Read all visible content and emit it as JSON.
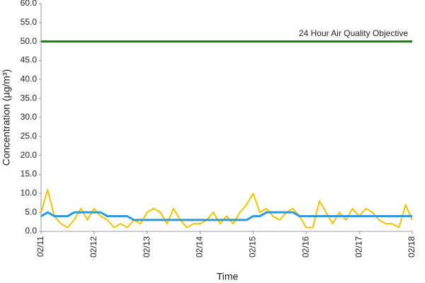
{
  "chart_data": {
    "type": "line",
    "x_label": "Time",
    "y_label": "Concentration (µg/m³)",
    "x": [
      0,
      3,
      6,
      9,
      12,
      15,
      18,
      21,
      24,
      27,
      30,
      33,
      36,
      39,
      42,
      45,
      48,
      51,
      54,
      57,
      60,
      63,
      66,
      69,
      72,
      75,
      78,
      81,
      84,
      87,
      90,
      93,
      96,
      99,
      102,
      105,
      108,
      111,
      114,
      117,
      120,
      123,
      126,
      129,
      132,
      135,
      138,
      141,
      144,
      147,
      150,
      153,
      156,
      159,
      162,
      165,
      168
    ],
    "series": [
      {
        "color": "#f2c200",
        "values": [
          5,
          11,
          4,
          2,
          1,
          3,
          6,
          3,
          6,
          4,
          3,
          1,
          2,
          1,
          3,
          2,
          5,
          6,
          5,
          2,
          6,
          3,
          1,
          2,
          2,
          3,
          5,
          2,
          4,
          2,
          5,
          7,
          10,
          5,
          6,
          4,
          3,
          5,
          6,
          4,
          1,
          1,
          8,
          5,
          2,
          5,
          3,
          6,
          4,
          6,
          5,
          3,
          2,
          2,
          1,
          7,
          3
        ]
      },
      {
        "color": "#2a9be0",
        "values": [
          4,
          5,
          4,
          4,
          4,
          5,
          5,
          5,
          5,
          5,
          4,
          4,
          4,
          4,
          3,
          3,
          3,
          3,
          3,
          3,
          3,
          3,
          3,
          3,
          3,
          3,
          3,
          3,
          3,
          3,
          3,
          3,
          4,
          4,
          5,
          5,
          5,
          5,
          5,
          4,
          4,
          4,
          4,
          4,
          4,
          4,
          4,
          4,
          4,
          4,
          4,
          4,
          4,
          4,
          4,
          4,
          4
        ]
      }
    ],
    "hlines": [
      {
        "value": 50,
        "label": "24 Hour Air Quality Objective",
        "color": "#1e7a1e"
      }
    ],
    "xlim": [
      0,
      168
    ],
    "xticks": [
      {
        "value": 0,
        "label": "02/11"
      },
      {
        "value": 24,
        "label": "02/12"
      },
      {
        "value": 48,
        "label": "02/13"
      },
      {
        "value": 72,
        "label": "02/14"
      },
      {
        "value": 96,
        "label": "02/15"
      },
      {
        "value": 120,
        "label": "02/16"
      },
      {
        "value": 144,
        "label": "02/17"
      },
      {
        "value": 168,
        "label": "02/18"
      }
    ],
    "ylim": [
      0,
      60
    ],
    "yticks": [
      {
        "value": 0,
        "label": "0.0"
      },
      {
        "value": 5,
        "label": "5.0"
      },
      {
        "value": 10,
        "label": "10.0"
      },
      {
        "value": 15,
        "label": "15.0"
      },
      {
        "value": 20,
        "label": "20.0"
      },
      {
        "value": 25,
        "label": "25.0"
      },
      {
        "value": 30,
        "label": "30.0"
      },
      {
        "value": 35,
        "label": "35.0"
      },
      {
        "value": 40,
        "label": "40.0"
      },
      {
        "value": 45,
        "label": "45.0"
      },
      {
        "value": 50,
        "label": "50.0"
      },
      {
        "value": 55,
        "label": "55.0"
      },
      {
        "value": 60,
        "label": "60.0"
      }
    ],
    "grid": false
  }
}
